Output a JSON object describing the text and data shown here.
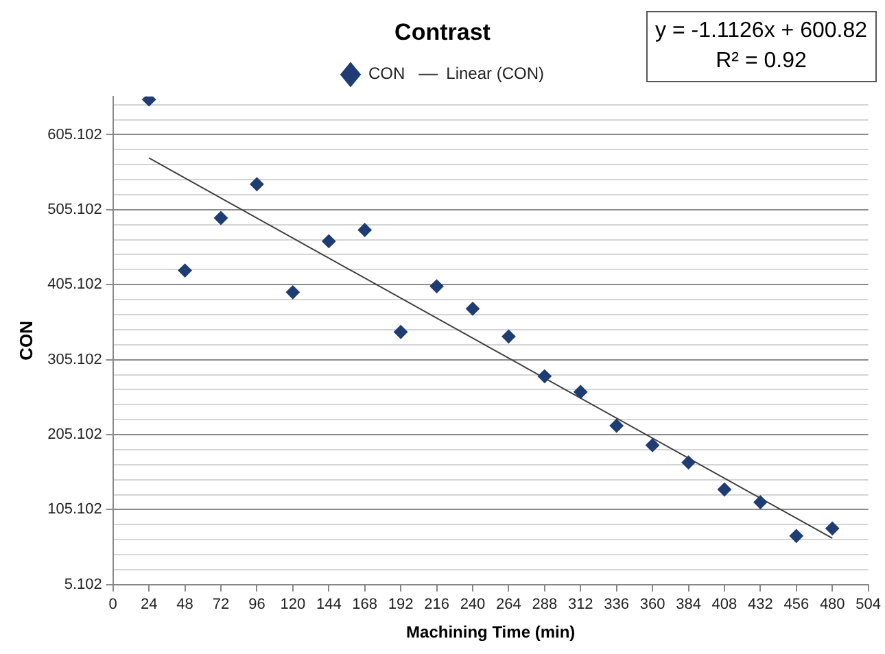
{
  "chart_data": {
    "type": "scatter",
    "title": "Contrast",
    "xlabel": "Machining Time (min)",
    "ylabel": "CON",
    "annotations": [
      "y = -1.1126x + 600.82",
      "R² = 0.92"
    ],
    "x": [
      24,
      48,
      72,
      96,
      120,
      144,
      168,
      192,
      216,
      240,
      264,
      288,
      312,
      336,
      360,
      384,
      408,
      432,
      456,
      480
    ],
    "series": [
      {
        "name": "CON",
        "color": "#1f3d73",
        "values": [
          652,
          424,
          494,
          539,
          395,
          463,
          478,
          342,
          403,
          373,
          336,
          283,
          262,
          217,
          191,
          168,
          132,
          115,
          70,
          80
        ]
      },
      {
        "name": "Linear (CON)",
        "type": "line",
        "marker": "none",
        "color": "#404040",
        "x": [
          24,
          480
        ],
        "values": [
          574,
          67
        ]
      }
    ],
    "xlim": [
      0,
      504
    ],
    "xticks": [
      0,
      24,
      48,
      72,
      96,
      120,
      144,
      168,
      192,
      216,
      240,
      264,
      288,
      312,
      336,
      360,
      384,
      408,
      432,
      456,
      480,
      504
    ],
    "ylim": [
      5.102,
      656
    ],
    "yticks": [
      5.102,
      {
        "value": 25.102,
        "label": null
      },
      {
        "value": 45.102,
        "label": null
      },
      {
        "value": 65.102,
        "label": null
      },
      {
        "value": 85.102,
        "label": null
      },
      105.102,
      {
        "value": 125.102,
        "label": null
      },
      {
        "value": 145.102,
        "label": null
      },
      {
        "value": 165.102,
        "label": null
      },
      {
        "value": 185.102,
        "label": null
      },
      205.102,
      {
        "value": 225.102,
        "label": null
      },
      {
        "value": 245.102,
        "label": null
      },
      {
        "value": 265.102,
        "label": null
      },
      {
        "value": 285.102,
        "label": null
      },
      305.102,
      {
        "value": 325.102,
        "label": null
      },
      {
        "value": 345.102,
        "label": null
      },
      {
        "value": 365.102,
        "label": null
      },
      {
        "value": 385.102,
        "label": null
      },
      405.102,
      {
        "value": 425.102,
        "label": null
      },
      {
        "value": 445.102,
        "label": null
      },
      {
        "value": 465.102,
        "label": null
      },
      {
        "value": 485.102,
        "label": null
      },
      505.102,
      {
        "value": 525.102,
        "label": null
      },
      {
        "value": 545.102,
        "label": null
      },
      {
        "value": 565.102,
        "label": null
      },
      {
        "value": 585.102,
        "label": null
      },
      605.102,
      {
        "value": 625.102,
        "label": null
      },
      {
        "value": 645.102,
        "label": null
      }
    ],
    "grid": "y",
    "legend": "top",
    "marker": "diamond",
    "line_style": "solid"
  }
}
